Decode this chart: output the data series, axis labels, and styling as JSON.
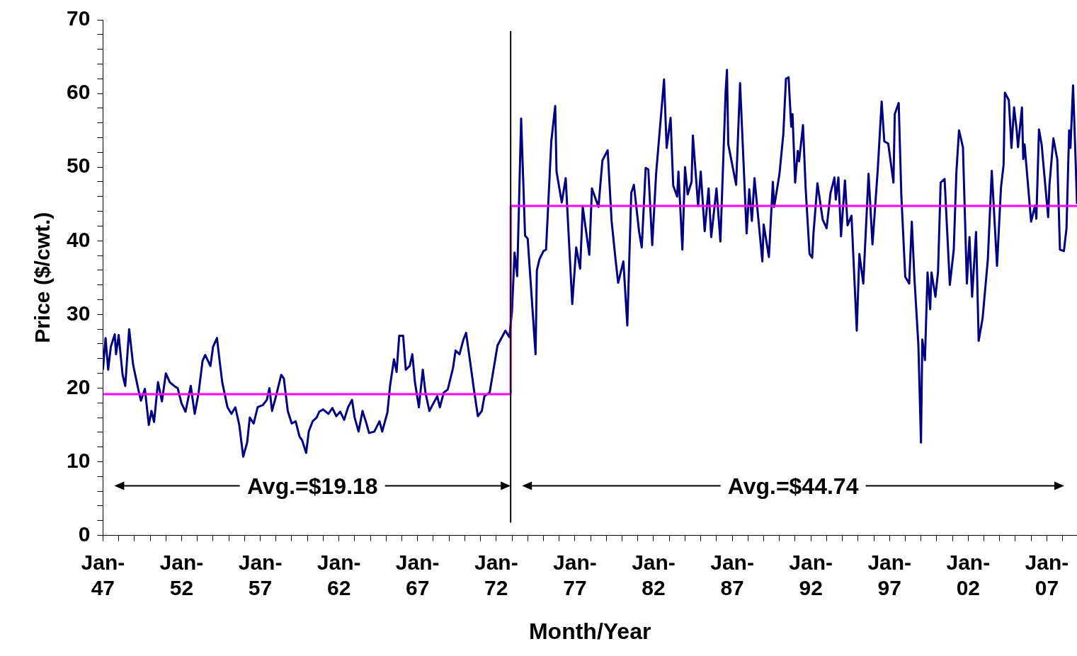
{
  "chart_data": {
    "type": "line",
    "xlabel": "Month/Year",
    "ylabel": "Price ($/cwt.)",
    "xlim": [
      "1947-01",
      "2008-12"
    ],
    "ylim": [
      0,
      70
    ],
    "xticks": [
      {
        "value": "1947-01",
        "label": "Jan-47"
      },
      {
        "value": "1948-01",
        "label": null
      },
      {
        "value": "1949-01",
        "label": null
      },
      {
        "value": "1950-01",
        "label": null
      },
      {
        "value": "1951-01",
        "label": null
      },
      {
        "value": "1952-01",
        "label": "Jan-52"
      },
      {
        "value": "1953-01",
        "label": null
      },
      {
        "value": "1954-01",
        "label": null
      },
      {
        "value": "1955-01",
        "label": null
      },
      {
        "value": "1956-01",
        "label": null
      },
      {
        "value": "1957-01",
        "label": "Jan-57"
      },
      {
        "value": "1958-01",
        "label": null
      },
      {
        "value": "1959-01",
        "label": null
      },
      {
        "value": "1960-01",
        "label": null
      },
      {
        "value": "1961-01",
        "label": null
      },
      {
        "value": "1962-01",
        "label": "Jan-62"
      },
      {
        "value": "1963-01",
        "label": null
      },
      {
        "value": "1964-01",
        "label": null
      },
      {
        "value": "1965-01",
        "label": null
      },
      {
        "value": "1966-01",
        "label": null
      },
      {
        "value": "1967-01",
        "label": "Jan-67"
      },
      {
        "value": "1968-01",
        "label": null
      },
      {
        "value": "1969-01",
        "label": null
      },
      {
        "value": "1970-01",
        "label": null
      },
      {
        "value": "1971-01",
        "label": null
      },
      {
        "value": "1972-01",
        "label": "Jan-72"
      },
      {
        "value": "1973-01",
        "label": null
      },
      {
        "value": "1974-01",
        "label": null
      },
      {
        "value": "1975-01",
        "label": null
      },
      {
        "value": "1976-01",
        "label": null
      },
      {
        "value": "1977-01",
        "label": "Jan-77"
      },
      {
        "value": "1978-01",
        "label": null
      },
      {
        "value": "1979-01",
        "label": null
      },
      {
        "value": "1980-01",
        "label": null
      },
      {
        "value": "1981-01",
        "label": null
      },
      {
        "value": "1982-01",
        "label": "Jan-82"
      },
      {
        "value": "1983-01",
        "label": null
      },
      {
        "value": "1984-01",
        "label": null
      },
      {
        "value": "1985-01",
        "label": null
      },
      {
        "value": "1986-01",
        "label": null
      },
      {
        "value": "1987-01",
        "label": "Jan-87"
      },
      {
        "value": "1988-01",
        "label": null
      },
      {
        "value": "1989-01",
        "label": null
      },
      {
        "value": "1990-01",
        "label": null
      },
      {
        "value": "1991-01",
        "label": null
      },
      {
        "value": "1992-01",
        "label": "Jan-92"
      },
      {
        "value": "1993-01",
        "label": null
      },
      {
        "value": "1994-01",
        "label": null
      },
      {
        "value": "1995-01",
        "label": null
      },
      {
        "value": "1996-01",
        "label": null
      },
      {
        "value": "1997-01",
        "label": "Jan-97"
      },
      {
        "value": "1998-01",
        "label": null
      },
      {
        "value": "1999-01",
        "label": null
      },
      {
        "value": "2000-01",
        "label": null
      },
      {
        "value": "2001-01",
        "label": null
      },
      {
        "value": "2002-01",
        "label": "Jan-02"
      },
      {
        "value": "2003-01",
        "label": null
      },
      {
        "value": "2004-01",
        "label": null
      },
      {
        "value": "2005-01",
        "label": null
      },
      {
        "value": "2006-01",
        "label": null
      },
      {
        "value": "2007-01",
        "label": "Jan-07"
      },
      {
        "value": "2008-01",
        "label": null
      }
    ],
    "yticks": [
      0,
      {
        "value": 2,
        "label": null
      },
      {
        "value": 4,
        "label": null
      },
      {
        "value": 6,
        "label": null
      },
      {
        "value": 8,
        "label": null
      },
      10,
      {
        "value": 12,
        "label": null
      },
      {
        "value": 14,
        "label": null
      },
      {
        "value": 16,
        "label": null
      },
      {
        "value": 18,
        "label": null
      },
      20,
      {
        "value": 22,
        "label": null
      },
      {
        "value": 24,
        "label": null
      },
      {
        "value": 26,
        "label": null
      },
      {
        "value": 28,
        "label": null
      },
      30,
      {
        "value": 32,
        "label": null
      },
      {
        "value": 34,
        "label": null
      },
      {
        "value": 36,
        "label": null
      },
      {
        "value": 38,
        "label": null
      },
      40,
      {
        "value": 42,
        "label": null
      },
      {
        "value": 44,
        "label": null
      },
      {
        "value": 46,
        "label": null
      },
      {
        "value": 48,
        "label": null
      },
      50,
      {
        "value": 52,
        "label": null
      },
      {
        "value": 54,
        "label": null
      },
      {
        "value": 56,
        "label": null
      },
      {
        "value": 58,
        "label": null
      },
      60,
      {
        "value": 62,
        "label": null
      },
      {
        "value": 64,
        "label": null
      },
      {
        "value": 66,
        "label": null
      },
      {
        "value": 68,
        "label": null
      },
      70
    ],
    "series": [
      {
        "type": "line",
        "color": "#000080",
        "x": [
          "1947-01",
          "1947-03",
          "1947-05",
          "1947-07",
          "1947-10",
          "1947-11",
          "1948-01",
          "1948-04",
          "1948-06",
          "1948-09",
          "1948-12",
          "1949-04",
          "1949-06",
          "1949-09",
          "1949-12",
          "1950-02",
          "1950-04",
          "1950-07",
          "1950-10",
          "1951-01",
          "1951-04",
          "1951-08",
          "1951-10",
          "1952-01",
          "1952-04",
          "1952-08",
          "1952-11",
          "1953-02",
          "1953-05",
          "1953-07",
          "1953-11",
          "1954-01",
          "1954-04",
          "1954-06",
          "1954-08",
          "1954-12",
          "1955-03",
          "1955-06",
          "1955-09",
          "1955-12",
          "1956-03",
          "1956-05",
          "1956-08",
          "1956-11",
          "1957-03",
          "1957-06",
          "1957-08",
          "1957-10",
          "1958-01",
          "1958-05",
          "1958-07",
          "1958-10",
          "1959-01",
          "1959-04",
          "1959-07",
          "1959-09",
          "1959-12",
          "1960-02",
          "1960-05",
          "1960-08",
          "1960-10",
          "1961-01",
          "1961-05",
          "1961-08",
          "1961-11",
          "1962-02",
          "1962-05",
          "1962-08",
          "1962-11",
          "1963-01",
          "1963-04",
          "1963-07",
          "1963-10",
          "1963-12",
          "1964-04",
          "1964-08",
          "1964-10",
          "1965-02",
          "1965-04",
          "1965-07",
          "1965-09",
          "1965-11",
          "1966-02",
          "1966-04",
          "1966-07",
          "1966-09",
          "1966-11",
          "1967-02",
          "1967-05",
          "1967-07",
          "1967-10",
          "1968-01",
          "1968-04",
          "1968-06",
          "1968-09",
          "1968-12",
          "1969-04",
          "1969-06",
          "1969-09",
          "1969-12",
          "1970-02",
          "1970-05",
          "1970-08",
          "1970-11",
          "1971-02",
          "1971-04",
          "1971-08",
          "1972-02",
          "1972-08",
          "1972-11",
          "1973-01",
          "1973-03",
          "1973-05",
          "1973-08",
          "1973-11",
          "1974-01",
          "1974-07",
          "1974-08",
          "1974-10",
          "1975-01",
          "1975-03",
          "1975-07",
          "1975-10",
          "1975-11",
          "1976-03",
          "1976-06",
          "1976-11",
          "1977-02",
          "1977-05",
          "1977-07",
          "1977-12",
          "1978-02",
          "1978-07",
          "1978-10",
          "1979-02",
          "1979-05",
          "1979-08",
          "1979-10",
          "1980-02",
          "1980-05",
          "1980-08",
          "1980-10",
          "1981-02",
          "1981-04",
          "1981-07",
          "1981-09",
          "1981-12",
          "1982-03",
          "1982-09",
          "1982-11",
          "1983-02",
          "1983-04",
          "1983-07",
          "1983-08",
          "1983-11",
          "1984-01",
          "1984-03",
          "1984-06",
          "1984-07",
          "1984-11",
          "1985-01",
          "1985-04",
          "1985-07",
          "1985-09",
          "1986-01",
          "1986-04",
          "1986-08",
          "1986-09",
          "1986-10",
          "1987-04",
          "1987-07",
          "1987-12",
          "1988-02",
          "1988-04",
          "1988-06",
          "1988-12",
          "1989-01",
          "1989-05",
          "1989-08",
          "1989-09",
          "1990-01",
          "1990-04",
          "1990-06",
          "1990-08",
          "1990-10",
          "1990-11",
          "1991-01",
          "1991-03",
          "1991-04",
          "1991-07",
          "1991-09",
          "1991-12",
          "1992-02",
          "1992-03",
          "1992-06",
          "1992-10",
          "1993-01",
          "1993-04",
          "1993-07",
          "1993-08",
          "1993-10",
          "1993-12",
          "1994-03",
          "1994-05",
          "1994-08",
          "1994-12",
          "1995-02",
          "1995-05",
          "1995-09",
          "1995-12",
          "1996-04",
          "1996-07",
          "1996-09",
          "1996-12",
          "1997-04",
          "1997-05",
          "1997-08",
          "1997-10",
          "1998-01",
          "1998-04",
          "1998-06",
          "1998-08",
          "1998-11",
          "1999-01",
          "1999-02",
          "1999-04",
          "1999-06",
          "1999-08",
          "1999-09",
          "1999-12",
          "2000-02",
          "2000-04",
          "2000-07",
          "2000-09",
          "2000-11",
          "2001-02",
          "2001-04",
          "2001-06",
          "2001-09",
          "2001-12",
          "2002-02",
          "2002-04",
          "2002-07",
          "2002-09",
          "2002-12",
          "2003-04",
          "2003-07",
          "2003-11",
          "2004-02",
          "2004-04",
          "2004-05",
          "2004-08",
          "2004-09",
          "2004-10",
          "2004-12",
          "2005-02",
          "2005-03",
          "2005-06",
          "2005-07",
          "2005-08",
          "2006-01",
          "2006-04",
          "2006-05",
          "2006-07",
          "2006-09",
          "2007-02",
          "2007-03",
          "2007-06",
          "2007-09",
          "2007-11",
          "2008-02",
          "2008-04",
          "2008-06",
          "2008-07",
          "2008-09",
          "2008-11",
          "2008-12"
        ],
        "values": [
          22.5,
          26.8,
          22.5,
          25.6,
          27.3,
          24.6,
          27.2,
          21.8,
          20.3,
          28.0,
          23.2,
          19.8,
          18.3,
          19.9,
          15.0,
          16.9,
          15.4,
          20.8,
          18.2,
          22.0,
          20.8,
          20.2,
          20.0,
          17.9,
          16.8,
          20.3,
          16.5,
          19.4,
          23.7,
          24.5,
          23.0,
          25.6,
          26.8,
          23.7,
          20.8,
          17.4,
          16.5,
          17.4,
          15.0,
          10.7,
          12.6,
          16.0,
          15.2,
          17.4,
          17.7,
          18.4,
          20.0,
          16.9,
          18.9,
          21.8,
          21.3,
          16.9,
          15.2,
          15.5,
          13.4,
          12.9,
          11.2,
          14.1,
          15.5,
          16.0,
          16.8,
          17.1,
          16.5,
          17.3,
          16.2,
          16.8,
          15.7,
          17.4,
          18.4,
          16.0,
          14.1,
          16.9,
          15.2,
          13.9,
          14.1,
          15.5,
          14.1,
          16.7,
          20.3,
          23.9,
          22.2,
          27.1,
          27.1,
          22.5,
          23.0,
          24.6,
          20.8,
          17.4,
          22.5,
          19.4,
          16.9,
          17.9,
          18.9,
          17.4,
          19.4,
          19.8,
          22.7,
          25.1,
          24.6,
          26.6,
          27.5,
          23.7,
          19.8,
          16.2,
          16.9,
          18.9,
          19.4,
          25.8,
          27.8,
          26.9,
          30.4,
          38.4,
          35.2,
          56.6,
          40.7,
          40.3,
          24.6,
          36.0,
          37.5,
          38.6,
          38.8,
          53.5,
          58.3,
          49.4,
          45.2,
          48.5,
          31.4,
          39.1,
          36.2,
          44.6,
          38.1,
          47.1,
          44.6,
          50.9,
          52.3,
          42.7,
          37.5,
          34.3,
          37.2,
          28.5,
          46.5,
          47.6,
          41.2,
          39.1,
          49.9,
          49.7,
          39.4,
          49.2,
          61.9,
          52.6,
          56.7,
          47.5,
          46.0,
          49.4,
          38.8,
          50.0,
          46.3,
          48.0,
          54.3,
          44.7,
          49.4,
          41.3,
          47.1,
          40.5,
          47.1,
          39.9,
          60.3,
          63.2,
          53.1,
          47.6,
          61.4,
          41.0,
          47.0,
          42.7,
          48.5,
          37.2,
          42.2,
          37.8,
          48.0,
          44.6,
          49.0,
          54.5,
          62.0,
          62.2,
          55.5,
          57.2,
          47.9,
          52.2,
          50.8,
          55.7,
          47.2,
          38.2,
          37.7,
          41.0,
          47.8,
          42.9,
          41.7,
          46.5,
          48.6,
          45.6,
          48.6,
          40.6,
          48.2,
          42.1,
          43.4,
          27.8,
          38.2,
          34.2,
          49.1,
          39.5,
          49.6,
          58.9,
          53.5,
          53.2,
          47.9,
          57.2,
          58.7,
          46.2,
          35.1,
          34.2,
          42.6,
          34.9,
          25.9,
          12.6,
          26.6,
          23.8,
          35.7,
          30.7,
          35.7,
          32.4,
          35.8,
          47.9,
          48.4,
          41.2,
          34.0,
          38.8,
          49.3,
          55.0,
          52.7,
          34.2,
          40.5,
          32.4,
          41.2,
          26.4,
          29.5,
          37.5,
          49.5,
          36.6,
          47.2,
          50.3,
          60.1,
          59.1,
          55.9,
          52.6,
          58.1,
          55.0,
          52.7,
          58.1,
          51.1,
          53.1,
          42.6,
          44.8,
          43.0,
          55.1,
          53.1,
          43.2,
          47.6,
          53.9,
          51.0,
          38.8,
          38.6,
          41.7,
          55.0,
          52.6,
          61.1,
          50.6,
          45.0
        ]
      },
      {
        "type": "step",
        "color": "#ff00ff",
        "x": [
          "1947-01",
          "1972-12",
          "2008-12"
        ],
        "values": [
          19.18,
          44.74,
          44.74
        ]
      }
    ],
    "ref_lines": [
      {
        "axis": "x",
        "value": "1972-12",
        "color": "#000000"
      }
    ],
    "annotations": [
      "Avg.=$19.18",
      "Avg.=$44.74"
    ],
    "legend": false,
    "grid": false,
    "marker": "none"
  }
}
